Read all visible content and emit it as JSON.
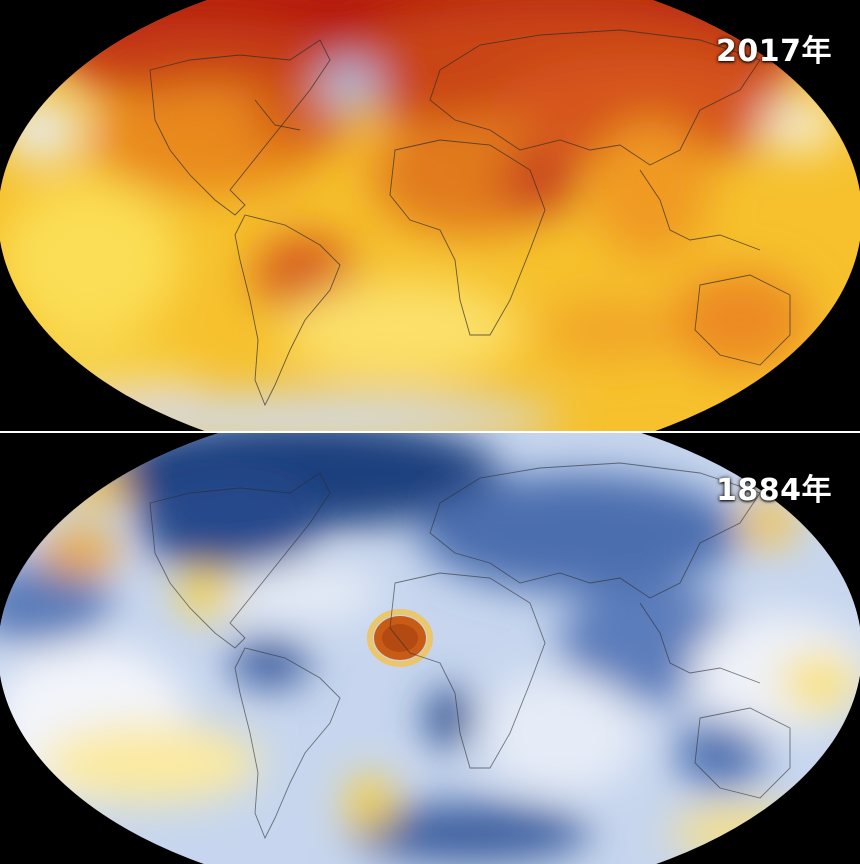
{
  "panels": [
    {
      "year_label": "2017年",
      "palette": {
        "base": "#f7c02b",
        "hot": "#e1660f",
        "hotter": "#c6310b",
        "cool": "#dfe8f7",
        "neutral": "#fff4a6"
      }
    },
    {
      "year_label": "1884年",
      "palette": {
        "base": "#c9d8ef",
        "light": "#f4f6fb",
        "cold": "#4e74b4",
        "colder": "#1f3f7e",
        "warm": "#f6d653",
        "hot": "#d9661a"
      }
    }
  ]
}
